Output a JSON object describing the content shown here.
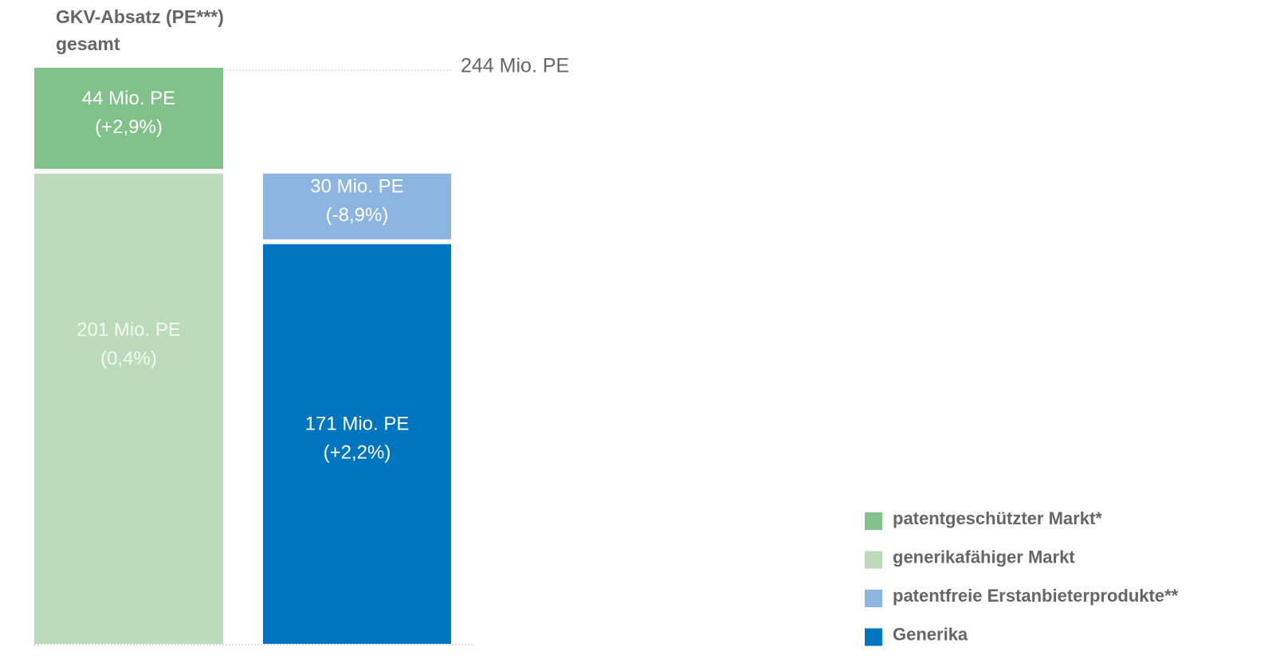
{
  "chart_data": {
    "type": "bar",
    "stacked": true,
    "categories": [
      "GKV-Absatz (PE***) gesamt",
      null
    ],
    "ylim": [
      0,
      244
    ],
    "total": {
      "value": 244,
      "label": "244 Mio. PE"
    },
    "legend": "bottom-right",
    "series": [
      {
        "name": "patentgeschützter Markt*",
        "color": "#80c28a",
        "values": [
          44,
          null
        ],
        "value_labels": [
          "44 Mio. PE",
          null
        ],
        "changes": [
          "(+2,9%)",
          null
        ]
      },
      {
        "name": "generikafähiger Markt",
        "color": "#bbdbba",
        "values": [
          201,
          null
        ],
        "value_labels": [
          "201 Mio. PE",
          null
        ],
        "changes": [
          "(0,4%)",
          null
        ]
      },
      {
        "name": "patentfreie Erstanbieterprodukte**",
        "color": "#8db5e2",
        "values": [
          null,
          30
        ],
        "value_labels": [
          null,
          "30 Mio. PE"
        ],
        "changes": [
          null,
          "(-8,9%)"
        ]
      },
      {
        "name": "Generika",
        "color": "#0075bf",
        "values": [
          null,
          171
        ],
        "value_labels": [
          null,
          "171 Mio. PE"
        ],
        "changes": [
          null,
          "(+2,2%)"
        ]
      }
    ]
  }
}
